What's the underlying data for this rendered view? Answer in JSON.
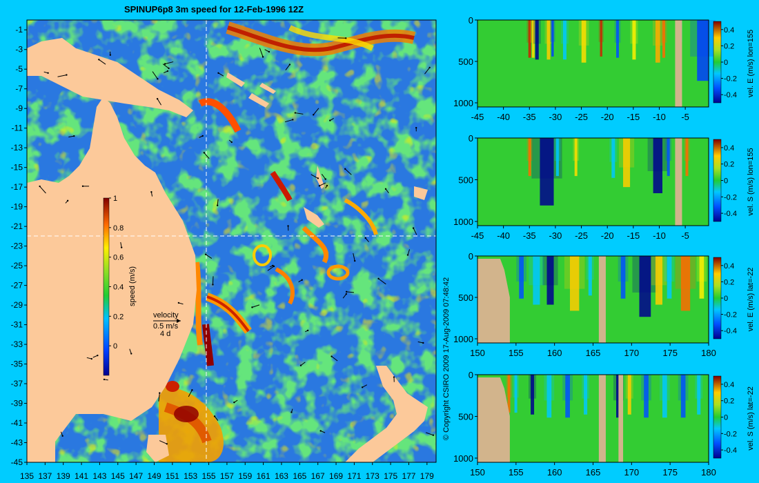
{
  "title": "SPINUP6p8 3m speed for 12-Feb-1996 12Z",
  "copyright": "© Copyright CSIRO 2009   17-Aug-2009 07:48:42",
  "map": {
    "x_ticks": [
      "135",
      "137",
      "139",
      "141",
      "143",
      "145",
      "147",
      "149",
      "151",
      "153",
      "155",
      "157",
      "159",
      "161",
      "163",
      "165",
      "167",
      "169",
      "171",
      "173",
      "175",
      "177",
      "179"
    ],
    "y_ticks": [
      "-1",
      "-3",
      "-5",
      "-7",
      "-9",
      "-11",
      "-13",
      "-15",
      "-17",
      "-19",
      "-21",
      "-23",
      "-25",
      "-27",
      "-29",
      "-31",
      "-33",
      "-35",
      "-37",
      "-39",
      "-41",
      "-43",
      "-45"
    ],
    "lon_range": [
      135,
      180
    ],
    "lat_range": [
      -45,
      0
    ],
    "section_lon": 155,
    "section_lat": -22,
    "colors": {
      "land": "#fcc99a",
      "ocean_low": "#2a78e0",
      "ocean_mid": "#22bb33",
      "ocean_high": "#ee2200",
      "guide_line": "#ffffff"
    }
  },
  "colorbar": {
    "label": "speed (m/s)",
    "ticks": [
      "1",
      "0.8",
      "0.6",
      "0.4",
      "0.2",
      "0"
    ],
    "range": [
      -0.2,
      1.0
    ]
  },
  "legend": {
    "label": "velocity",
    "speed": "0.5 m/s",
    "time": "4 d"
  },
  "sections": [
    {
      "colorbar_label": "vel. E (m/s) lon=155",
      "x_ticks": [
        "-45",
        "-40",
        "-35",
        "-30",
        "-25",
        "-20",
        "-15",
        "-10",
        "-5"
      ],
      "y_ticks": [
        "0",
        "500",
        "1000"
      ]
    },
    {
      "colorbar_label": "vel. S (m/s) lon=155",
      "x_ticks": [
        "-45",
        "-40",
        "-35",
        "-30",
        "-25",
        "-20",
        "-15",
        "-10",
        "-5"
      ],
      "y_ticks": [
        "0",
        "500",
        "1000"
      ]
    },
    {
      "colorbar_label": "vel. E (m/s) lat=-22",
      "x_ticks": [
        "150",
        "155",
        "160",
        "165",
        "170",
        "175",
        "180"
      ],
      "y_ticks": [
        "0",
        "500",
        "1000"
      ]
    },
    {
      "colorbar_label": "vel. S (m/s) lat=-22",
      "x_ticks": [
        "150",
        "155",
        "160",
        "165",
        "170",
        "175",
        "180"
      ],
      "y_ticks": [
        "0",
        "500",
        "1000"
      ]
    }
  ],
  "section_colorbar_ticks": [
    "0.4",
    "0.2",
    "0",
    "-0.2",
    "-0.4"
  ]
}
